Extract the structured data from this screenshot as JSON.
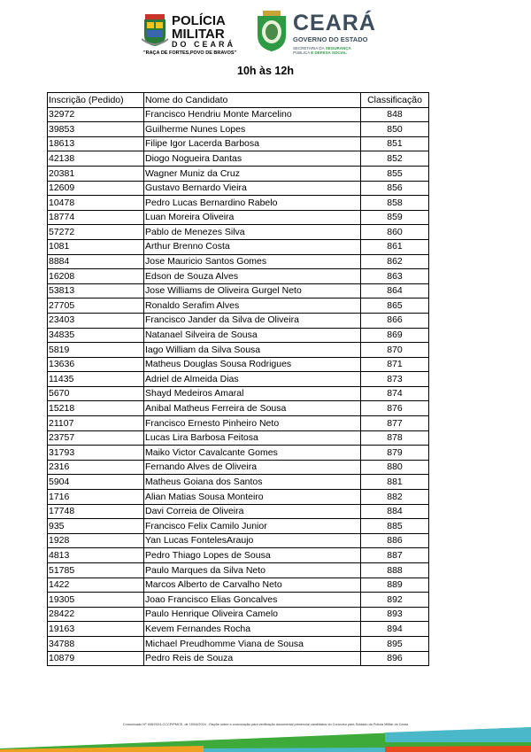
{
  "header": {
    "pm_logo": {
      "line1": "POLÍCIA",
      "line2": "MILITAR",
      "line3": "DO CEARÁ",
      "motto": "\"RAÇA DE FORTES,POVO DE BRAVOS\""
    },
    "gov_logo": {
      "title": "CEARÁ",
      "subtitle": "GOVERNO DO ESTADO",
      "dept_line1_a": "SECRETARIA DA ",
      "dept_line1_b": "SEGURANÇA",
      "dept_line2_a": "PÚBLICA ",
      "dept_line2_b": "E DEFESA SOCIAL"
    },
    "time_slot": "10h às 12h"
  },
  "table": {
    "columns": [
      "Inscrição (Pedido)",
      "Nome do Candidato",
      "Classificação"
    ],
    "rows": [
      [
        "32972",
        "Francisco Hendriu Monte Marcelino",
        "848"
      ],
      [
        "39853",
        "Guilherme Nunes Lopes",
        "850"
      ],
      [
        "18613",
        "Filipe Igor Lacerda Barbosa",
        "851"
      ],
      [
        "42138",
        "Diogo Nogueira Dantas",
        "852"
      ],
      [
        "20381",
        "Wagner Muniz da Cruz",
        "855"
      ],
      [
        "12609",
        "Gustavo Bernardo Vieira",
        "856"
      ],
      [
        "10478",
        "Pedro Lucas Bernardino Rabelo",
        "858"
      ],
      [
        "18774",
        "Luan Moreira Oliveira",
        "859"
      ],
      [
        "57272",
        "Pablo de Menezes Silva",
        "860"
      ],
      [
        "1081",
        "Arthur Brenno Costa",
        "861"
      ],
      [
        "8884",
        "Jose Mauricio Santos Gomes",
        "862"
      ],
      [
        "16208",
        "Edson de Souza Alves",
        "863"
      ],
      [
        "53813",
        "Jose Williams de Oliveira Gurgel Neto",
        "864"
      ],
      [
        "27705",
        "Ronaldo Serafim Alves",
        "865"
      ],
      [
        "23403",
        "Francisco Jander da Silva de Oliveira",
        "866"
      ],
      [
        "34835",
        "Natanael Silveira de Sousa",
        "869"
      ],
      [
        "5819",
        "Iago William da Silva Sousa",
        "870"
      ],
      [
        "13636",
        "Matheus Douglas Sousa Rodrigues",
        "871"
      ],
      [
        "11435",
        "Adriel de Almeida Dias",
        "873"
      ],
      [
        "5670",
        "Shayd Medeiros Amaral",
        "874"
      ],
      [
        "15218",
        "Anibal Matheus Ferreira de Sousa",
        "876"
      ],
      [
        "21107",
        "Francisco Ernesto Pinheiro Neto",
        "877"
      ],
      [
        "23757",
        "Lucas Lira Barbosa Feitosa",
        "878"
      ],
      [
        "31793",
        "Maiko Victor Cavalcante Gomes",
        "879"
      ],
      [
        "2316",
        "Fernando Alves de Oliveira",
        "880"
      ],
      [
        "5904",
        "Matheus Goiana dos Santos",
        "881"
      ],
      [
        "1716",
        "Alian Matias Sousa Monteiro",
        "882"
      ],
      [
        "17748",
        "Davi Correia de Oliveira",
        "884"
      ],
      [
        "935",
        "Francisco Felix Camilo Junior",
        "885"
      ],
      [
        "1928",
        "Yan Lucas FontelesAraujo",
        "886"
      ],
      [
        "4813",
        "Pedro Thiago Lopes de Sousa",
        "887"
      ],
      [
        "51785",
        "Paulo Marques da Silva Neto",
        "888"
      ],
      [
        "1422",
        "Marcos Alberto de Carvalho Neto",
        "889"
      ],
      [
        "19305",
        "Joao Francisco Elias Goncalves",
        "892"
      ],
      [
        "28422",
        "Paulo Henrique Oliveira Camelo",
        "893"
      ],
      [
        "19163",
        "Kevem Fernandes Rocha",
        "894"
      ],
      [
        "34788",
        "Michael Preudhomme Viana de Sousa",
        "895"
      ],
      [
        "10879",
        "Pedro Reis de Souza",
        "896"
      ]
    ]
  },
  "footer": {
    "note": "Comunicado Nº 498/2024-CCCP/PMCE, de 15/04/2024 - Dispõe sobre a convocação para verificação documental presencial candidatos do Concurso para Soldado da Polícia Militar do Ceará",
    "colors": {
      "green": "#3daa3a",
      "blue": "#4bb8c9",
      "orange": "#f0a020",
      "red": "#e84a1c"
    }
  }
}
